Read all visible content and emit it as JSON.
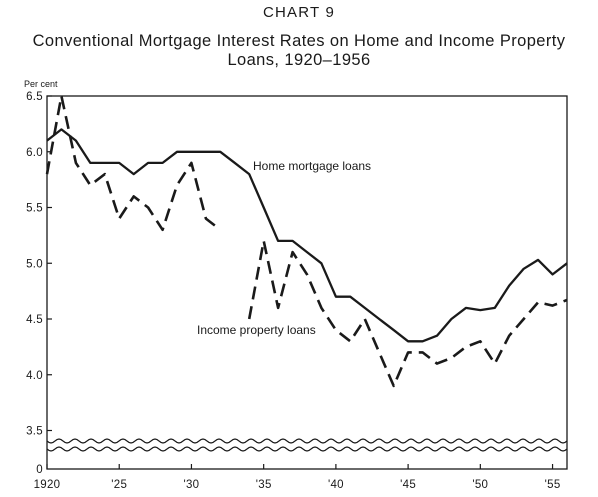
{
  "style": {
    "background": "#ffffff",
    "ink": "#1a1a1a"
  },
  "chart_data": {
    "type": "line",
    "title": "CHART 9",
    "subtitle_lines": [
      "Conventional Mortgage Interest Rates on Home and Income Property",
      "Loans, 1920–1956"
    ],
    "xlabel": "",
    "ylabel": "Per cent",
    "xlim": [
      1920,
      1956
    ],
    "ylim": [
      3.5,
      6.5
    ],
    "y_axis_break": {
      "between": [
        0,
        3.5
      ]
    },
    "grid": false,
    "legend": "none",
    "x_ticks": [
      {
        "value": 1920,
        "label": "1920"
      },
      {
        "value": 1925,
        "label": "'25"
      },
      {
        "value": 1930,
        "label": "'30"
      },
      {
        "value": 1935,
        "label": "'35"
      },
      {
        "value": 1940,
        "label": "'40"
      },
      {
        "value": 1945,
        "label": "'45"
      },
      {
        "value": 1950,
        "label": "'50"
      },
      {
        "value": 1955,
        "label": "'55"
      }
    ],
    "y_ticks": [
      {
        "value": 6.5,
        "label": "6.5"
      },
      {
        "value": 6.0,
        "label": "6.0"
      },
      {
        "value": 5.5,
        "label": "5.5"
      },
      {
        "value": 5.0,
        "label": "5.0"
      },
      {
        "value": 4.5,
        "label": "4.5"
      },
      {
        "value": 4.0,
        "label": "4.0"
      },
      {
        "value": 3.5,
        "label": "3.5"
      },
      {
        "value": 0,
        "label": "0"
      }
    ],
    "x": [
      1920,
      1921,
      1922,
      1923,
      1924,
      1925,
      1926,
      1927,
      1928,
      1929,
      1930,
      1931,
      1932,
      1933,
      1934,
      1935,
      1936,
      1937,
      1938,
      1939,
      1940,
      1941,
      1942,
      1943,
      1944,
      1945,
      1946,
      1947,
      1948,
      1949,
      1950,
      1951,
      1952,
      1953,
      1954,
      1955,
      1956
    ],
    "series": [
      {
        "name": "Home mortgage loans",
        "line_style": "solid",
        "color": "#1a1a1a",
        "values": [
          6.1,
          6.2,
          6.1,
          5.9,
          5.9,
          5.9,
          5.8,
          5.9,
          5.9,
          6.0,
          6.0,
          6.0,
          6.0,
          5.9,
          5.8,
          5.5,
          5.2,
          5.2,
          5.1,
          5.0,
          4.7,
          4.7,
          4.6,
          4.5,
          4.4,
          4.3,
          4.3,
          4.35,
          4.5,
          4.6,
          4.58,
          4.6,
          4.8,
          4.95,
          5.03,
          4.9,
          5.0
        ]
      },
      {
        "name": "Income property loans",
        "line_style": "dashed",
        "color": "#1a1a1a",
        "values": [
          5.8,
          6.5,
          5.9,
          5.7,
          5.8,
          5.4,
          5.6,
          5.5,
          5.3,
          5.7,
          5.9,
          5.4,
          5.3,
          null,
          4.5,
          5.2,
          4.6,
          5.1,
          4.9,
          4.6,
          4.4,
          4.3,
          4.5,
          4.2,
          3.9,
          4.2,
          4.2,
          4.1,
          4.15,
          4.25,
          4.3,
          4.1,
          4.35,
          4.5,
          4.65,
          4.62,
          4.67
        ]
      }
    ]
  }
}
